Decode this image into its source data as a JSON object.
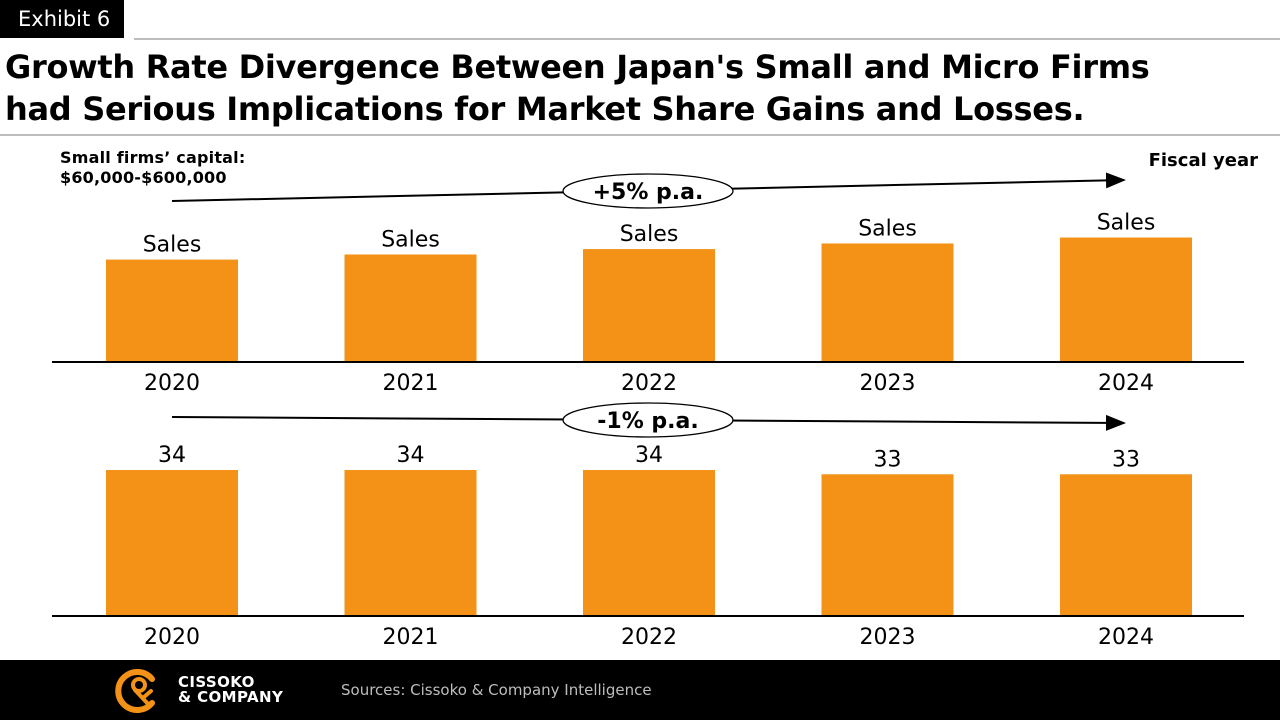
{
  "exhibit": "Exhibit 6",
  "title": {
    "line1": "Growth Rate Divergence Between Japan's Small and Micro Firms",
    "line2": "had Serious Implications for Market Share Gains and Losses."
  },
  "note": {
    "line1": "Small firms’ capital:",
    "line2": "$60,000-$600,000"
  },
  "axis_caption": "Fiscal year",
  "colors": {
    "bar": "#F39217",
    "axis": "#000000"
  },
  "chart_data": [
    {
      "type": "bar",
      "categories": [
        "2020",
        "2021",
        "2022",
        "2023",
        "2024"
      ],
      "values": [
        100,
        105,
        110.25,
        115.76,
        121.55
      ],
      "data_labels": [
        "Sales",
        "Sales",
        "Sales",
        "Sales",
        "Sales"
      ],
      "annotation": "+5% p.a.",
      "annotation_trend": "up",
      "ylim": [
        0,
        125
      ],
      "y_axis": "hidden",
      "grid": false
    },
    {
      "type": "bar",
      "categories": [
        "2020",
        "2021",
        "2022",
        "2023",
        "2024"
      ],
      "values": [
        34,
        34,
        34,
        33,
        33
      ],
      "data_labels": [
        "34",
        "34",
        "34",
        "33",
        "33"
      ],
      "annotation": "-1% p.a.",
      "annotation_trend": "down",
      "ylim": [
        0,
        34
      ],
      "y_axis": "hidden",
      "grid": false
    }
  ],
  "footer": {
    "logo_line1": "CISSOKO",
    "logo_line2": "& COMPANY",
    "sources": "Sources: Cissoko & Company Intelligence"
  }
}
